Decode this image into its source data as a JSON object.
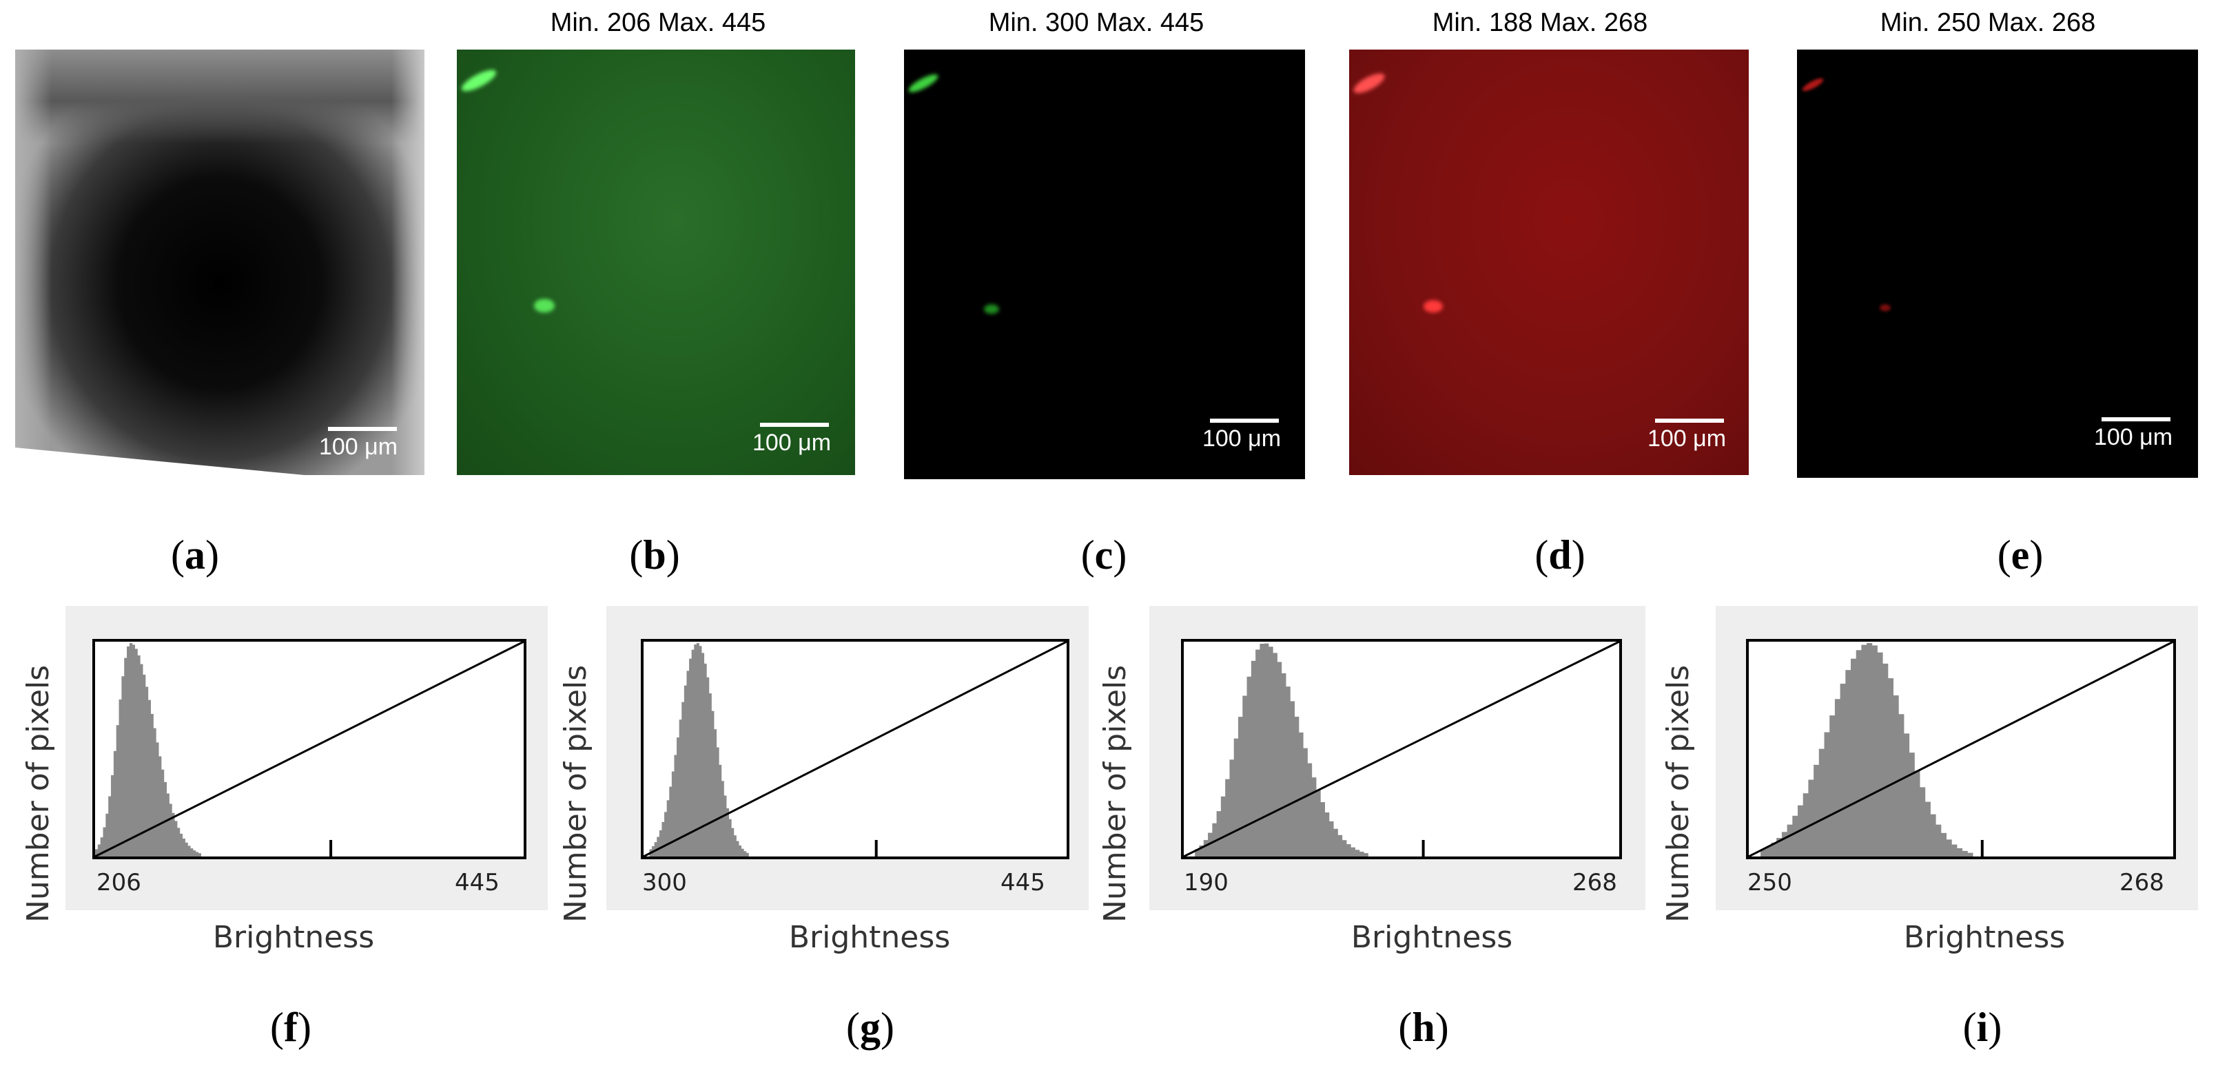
{
  "figure": {
    "panels_top": [
      {
        "id": "a",
        "title": "",
        "scale": "100 μm",
        "label_open": "(",
        "label_letter": "a",
        "label_close": ")",
        "kind": "brightfield"
      },
      {
        "id": "b",
        "title": "Min. 206 Max. 445",
        "scale": "100 μm",
        "label_open": "(",
        "label_letter": "b",
        "label_close": ")",
        "kind": "green-full"
      },
      {
        "id": "c",
        "title": "Min. 300 Max. 445",
        "scale": "100 μm",
        "label_open": "(",
        "label_letter": "c",
        "label_close": ")",
        "kind": "green-dark"
      },
      {
        "id": "d",
        "title": "Min. 188 Max. 268",
        "scale": "100 μm",
        "label_open": "(",
        "label_letter": "d",
        "label_close": ")",
        "kind": "red-full"
      },
      {
        "id": "e",
        "title": "Min. 250 Max. 268",
        "scale": "100 μm",
        "label_open": "(",
        "label_letter": "e",
        "label_close": ")",
        "kind": "red-dark"
      }
    ],
    "histograms": [
      {
        "id": "f",
        "ylabel": "Number of pixels",
        "xlabel": "Brightness",
        "x_min_label": "206",
        "x_max_label": "445",
        "label_open": "(",
        "label_letter": "f",
        "label_close": ")"
      },
      {
        "id": "g",
        "ylabel": "Number of pixels",
        "xlabel": "Brightness",
        "x_min_label": "300",
        "x_max_label": "445",
        "label_open": "(",
        "label_letter": "g",
        "label_close": ")"
      },
      {
        "id": "h",
        "ylabel": "Number of pixels",
        "xlabel": "Brightness",
        "x_min_label": "190",
        "x_max_label": "268",
        "label_open": "(",
        "label_letter": "h",
        "label_close": ")"
      },
      {
        "id": "i",
        "ylabel": "Number of pixels",
        "xlabel": "Brightness",
        "x_min_label": "250",
        "x_max_label": "268",
        "label_open": "(",
        "label_letter": "i",
        "label_close": ")"
      }
    ]
  },
  "chart_data": [
    {
      "type": "bar",
      "title": "",
      "xlabel": "Brightness",
      "ylabel": "Number of pixels",
      "x_tick_labels": [
        "206",
        "445"
      ],
      "xlim": [
        206,
        445
      ],
      "display_min": 206,
      "display_max": 445,
      "histogram_peak_brightness": 225,
      "histogram_range": [
        206,
        265
      ]
    },
    {
      "type": "bar",
      "title": "",
      "xlabel": "Brightness",
      "ylabel": "Number of pixels",
      "x_tick_labels": [
        "300",
        "445"
      ],
      "xlim": [
        300,
        445
      ],
      "display_min": 300,
      "display_max": 445,
      "histogram_peak_brightness": 318,
      "histogram_range": [
        302,
        336
      ]
    },
    {
      "type": "bar",
      "title": "",
      "xlabel": "Brightness",
      "ylabel": "Number of pixels",
      "x_tick_labels": [
        "190",
        "268"
      ],
      "xlim": [
        190,
        268
      ],
      "display_min": 188,
      "display_max": 268,
      "histogram_peak_brightness": 204,
      "histogram_range": [
        192,
        223
      ]
    },
    {
      "type": "bar",
      "title": "",
      "xlabel": "Brightness",
      "ylabel": "Number of pixels",
      "x_tick_labels": [
        "250",
        "268"
      ],
      "xlim": [
        250,
        268
      ],
      "display_min": 250,
      "display_max": 268,
      "histogram_peak_brightness": 255,
      "histogram_range": [
        250.5,
        259.5
      ]
    }
  ]
}
